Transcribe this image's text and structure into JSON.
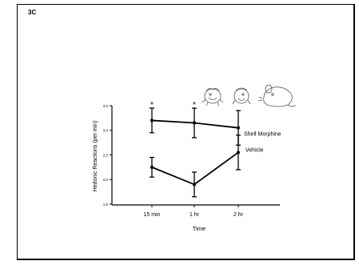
{
  "panel_label": "3C",
  "chart_data": {
    "type": "line",
    "title": "",
    "xlabel": "Time",
    "ylabel": "Hedonic Reactions (per min)",
    "categories": [
      "15 min",
      "1 hr",
      "2 hr"
    ],
    "ylim": [
      1.5,
      3.5
    ],
    "yticks": [
      "3.5",
      "3.0",
      "2.5",
      "2.0",
      "1.5"
    ],
    "grid": false,
    "legend": "inline labels at right end of lines",
    "series": [
      {
        "name": "Shell Morphine",
        "values": [
          3.2,
          3.15,
          3.05
        ],
        "errors": [
          0.25,
          0.3,
          0.35
        ],
        "markers": [
          "*",
          "*",
          ""
        ]
      },
      {
        "name": "Vehicle",
        "values": [
          2.25,
          1.9,
          2.55
        ],
        "errors": [
          0.2,
          0.25,
          0.35
        ],
        "markers": [
          "",
          "",
          ""
        ]
      }
    ],
    "colors": {
      "line": "#000000"
    },
    "illustration": "rat-faces-icon"
  }
}
